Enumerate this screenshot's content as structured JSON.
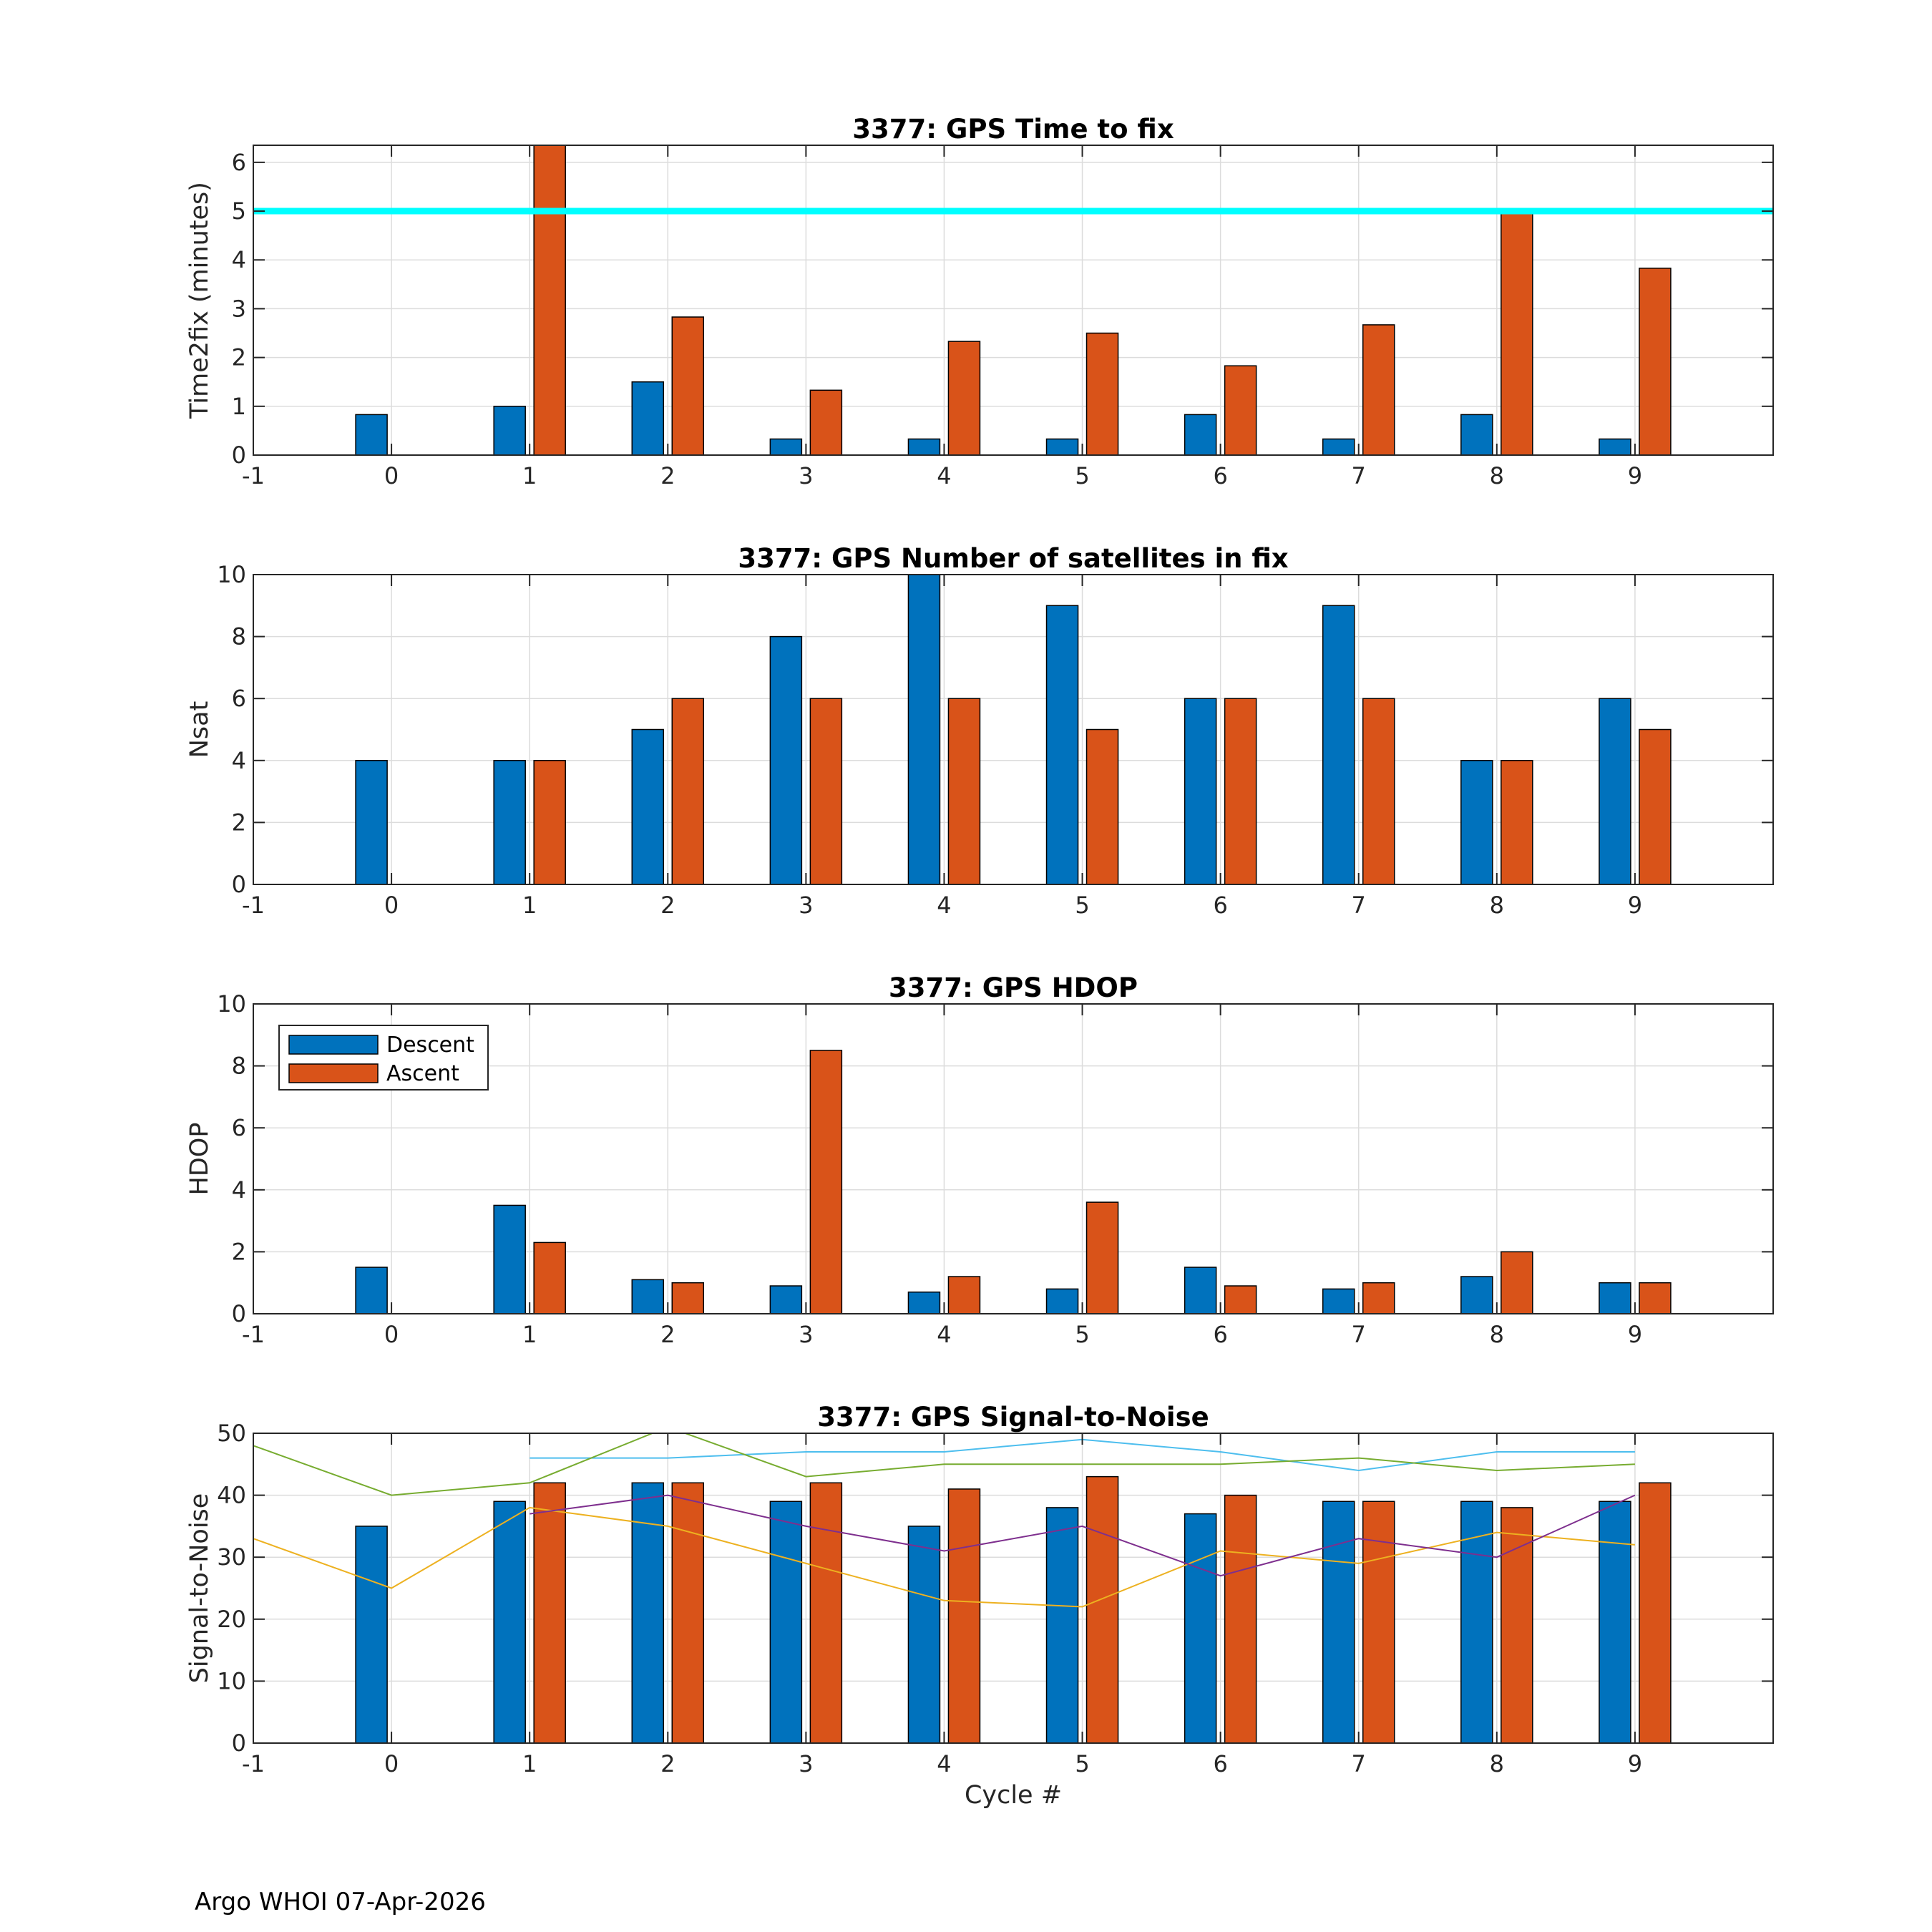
{
  "footer": "Argo WHOI 07-Apr-2026",
  "colors": {
    "descent": "#0072BD",
    "ascent": "#D95319",
    "threshold": "#00FFFF",
    "snr_cyan": "#4DBEEE",
    "snr_green": "#77AC30",
    "snr_yellow": "#EDB120",
    "snr_purple": "#7E2F8E"
  },
  "legend": {
    "descent": "Descent",
    "ascent": "Ascent"
  },
  "chart_data": [
    {
      "type": "bar",
      "title": "3377: GPS Time to fix",
      "xlabel": "",
      "ylabel": "Time2fix (minutes)",
      "xlim": [
        -1,
        10
      ],
      "ylim": [
        0,
        6.35
      ],
      "xticks": [
        "-1",
        "0",
        "1",
        "2",
        "3",
        "4",
        "5",
        "6",
        "7",
        "8",
        "9"
      ],
      "yticks": [
        "0",
        "1",
        "2",
        "3",
        "4",
        "5",
        "6"
      ],
      "grid": true,
      "categories": [
        0,
        1,
        2,
        3,
        4,
        5,
        6,
        7,
        8,
        9
      ],
      "series": [
        {
          "name": "Descent",
          "values": [
            0.83,
            1.0,
            1.5,
            0.33,
            0.33,
            0.33,
            0.83,
            0.33,
            0.83,
            0.33
          ]
        },
        {
          "name": "Ascent",
          "values": [
            null,
            6.35,
            2.83,
            1.33,
            2.33,
            2.5,
            1.83,
            2.67,
            5.0,
            3.83
          ]
        }
      ],
      "reference_line": {
        "y": 5
      }
    },
    {
      "type": "bar",
      "title": "3377: GPS Number of satellites in fix",
      "xlabel": "",
      "ylabel": "Nsat",
      "xlim": [
        -1,
        10
      ],
      "ylim": [
        0,
        10
      ],
      "xticks": [
        "-1",
        "0",
        "1",
        "2",
        "3",
        "4",
        "5",
        "6",
        "7",
        "8",
        "9"
      ],
      "yticks": [
        "0",
        "2",
        "4",
        "6",
        "8",
        "10"
      ],
      "grid": true,
      "categories": [
        0,
        1,
        2,
        3,
        4,
        5,
        6,
        7,
        8,
        9
      ],
      "series": [
        {
          "name": "Descent",
          "values": [
            4,
            4,
            5,
            8,
            10,
            9,
            6,
            9,
            4,
            6
          ]
        },
        {
          "name": "Ascent",
          "values": [
            null,
            4,
            6,
            6,
            6,
            5,
            6,
            6,
            4,
            5
          ]
        }
      ]
    },
    {
      "type": "bar",
      "title": "3377: GPS HDOP",
      "xlabel": "",
      "ylabel": "HDOP",
      "xlim": [
        -1,
        10
      ],
      "ylim": [
        0,
        10
      ],
      "xticks": [
        "-1",
        "0",
        "1",
        "2",
        "3",
        "4",
        "5",
        "6",
        "7",
        "8",
        "9"
      ],
      "yticks": [
        "0",
        "2",
        "4",
        "6",
        "8",
        "10"
      ],
      "grid": true,
      "legend_position": "top-left",
      "categories": [
        0,
        1,
        2,
        3,
        4,
        5,
        6,
        7,
        8,
        9
      ],
      "series": [
        {
          "name": "Descent",
          "values": [
            1.5,
            3.5,
            1.1,
            0.9,
            0.7,
            0.8,
            1.5,
            0.8,
            1.2,
            1.0
          ]
        },
        {
          "name": "Ascent",
          "values": [
            null,
            2.3,
            1.0,
            8.5,
            1.2,
            3.6,
            0.9,
            1.0,
            2.0,
            1.0
          ]
        }
      ]
    },
    {
      "type": "bar",
      "title": "3377: GPS Signal-to-Noise",
      "xlabel": "Cycle #",
      "ylabel": "Signal-to-Noise",
      "xlim": [
        -1,
        10
      ],
      "ylim": [
        0,
        50
      ],
      "xticks": [
        "-1",
        "0",
        "1",
        "2",
        "3",
        "4",
        "5",
        "6",
        "7",
        "8",
        "9"
      ],
      "yticks": [
        "0",
        "10",
        "20",
        "30",
        "40",
        "50"
      ],
      "grid": true,
      "categories": [
        0,
        1,
        2,
        3,
        4,
        5,
        6,
        7,
        8,
        9
      ],
      "series": [
        {
          "name": "Descent",
          "values": [
            35,
            39,
            42,
            39,
            35,
            38,
            37,
            39,
            39,
            39
          ]
        },
        {
          "name": "Ascent",
          "values": [
            null,
            42,
            42,
            42,
            41,
            43,
            40,
            39,
            38,
            42
          ]
        }
      ],
      "lines": [
        {
          "color": "snr_cyan",
          "x": [
            1,
            2,
            3,
            4,
            5,
            6,
            7,
            8,
            9
          ],
          "y": [
            46,
            46,
            47,
            47,
            49,
            47,
            44,
            47,
            47
          ]
        },
        {
          "color": "snr_green",
          "x": [
            -1,
            0,
            1,
            2,
            3,
            4,
            5,
            6,
            7,
            8,
            9
          ],
          "y": [
            48,
            40,
            42,
            51,
            43,
            45,
            45,
            45,
            46,
            44,
            45
          ]
        },
        {
          "color": "snr_yellow",
          "x": [
            -1,
            0,
            1,
            2,
            3,
            4,
            5,
            6,
            7,
            8,
            9
          ],
          "y": [
            33,
            25,
            38,
            35,
            29,
            23,
            22,
            31,
            29,
            34,
            32
          ]
        },
        {
          "color": "snr_purple",
          "x": [
            1,
            2,
            3,
            4,
            5,
            6,
            7,
            8,
            9
          ],
          "y": [
            37,
            40,
            35,
            31,
            35,
            27,
            33,
            30,
            40
          ]
        }
      ]
    }
  ]
}
